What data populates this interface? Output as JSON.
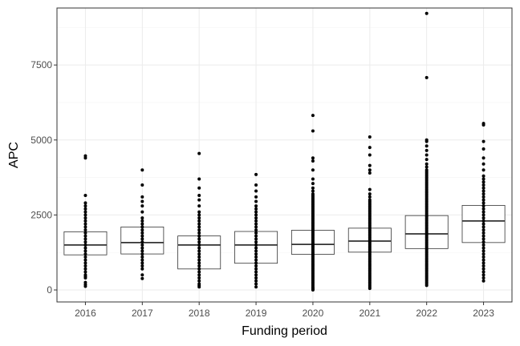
{
  "chart_data": {
    "type": "box",
    "title": "",
    "xlabel": "Funding period",
    "ylabel": "APC",
    "categories": [
      "2016",
      "2017",
      "2018",
      "2019",
      "2020",
      "2021",
      "2022",
      "2023"
    ],
    "ylim": [
      -400,
      9400
    ],
    "yticks": [
      0,
      2500,
      5000,
      7500
    ],
    "ytick_labels": [
      "0",
      "2500",
      "5000",
      "7500"
    ],
    "grid": true,
    "legend": "none",
    "colors": {
      "box_line": "#333333",
      "median": "#333333",
      "point": "#000000",
      "grid_major": "#ebebeb",
      "grid_minor": "#f5f5f5",
      "panel_border": "#333333"
    },
    "boxes": [
      {
        "category": "2016",
        "q1": 1170,
        "median": 1500,
        "q3": 1940
      },
      {
        "category": "2017",
        "q1": 1200,
        "median": 1580,
        "q3": 2100
      },
      {
        "category": "2018",
        "q1": 700,
        "median": 1500,
        "q3": 1800
      },
      {
        "category": "2019",
        "q1": 890,
        "median": 1500,
        "q3": 1950
      },
      {
        "category": "2020",
        "q1": 1190,
        "median": 1520,
        "q3": 1990
      },
      {
        "category": "2021",
        "q1": 1260,
        "median": 1630,
        "q3": 2060
      },
      {
        "category": "2022",
        "q1": 1380,
        "median": 1870,
        "q3": 2480
      },
      {
        "category": "2023",
        "q1": 1580,
        "median": 2300,
        "q3": 2820
      }
    ],
    "points": [
      {
        "category": "2016",
        "values": [
          120,
          180,
          250,
          400,
          450,
          500,
          600,
          700,
          800,
          900,
          1000,
          1100,
          1200,
          1300,
          1400,
          1500,
          1600,
          1700,
          1800,
          1900,
          2000,
          2100,
          2200,
          2300,
          2400,
          2500,
          2600,
          2700,
          2800,
          2900,
          3150,
          4400,
          4470
        ]
      },
      {
        "category": "2017",
        "values": [
          380,
          500,
          700,
          800,
          900,
          1000,
          1100,
          1200,
          1300,
          1400,
          1500,
          1600,
          1700,
          1800,
          1900,
          2000,
          2100,
          2200,
          2300,
          2400,
          2600,
          2800,
          2950,
          3100,
          3500,
          4000
        ]
      },
      {
        "category": "2018",
        "values": [
          100,
          150,
          200,
          300,
          400,
          500,
          600,
          700,
          800,
          900,
          1000,
          1100,
          1200,
          1300,
          1400,
          1500,
          1600,
          1700,
          1800,
          1900,
          2000,
          2100,
          2200,
          2300,
          2400,
          2500,
          2600,
          2800,
          3000,
          3150,
          3400,
          3700,
          4550
        ]
      },
      {
        "category": "2019",
        "values": [
          100,
          200,
          300,
          400,
          500,
          600,
          700,
          800,
          900,
          1000,
          1100,
          1200,
          1300,
          1400,
          1500,
          1600,
          1700,
          1800,
          1900,
          2000,
          2100,
          2200,
          2300,
          2400,
          2500,
          2600,
          2700,
          2800,
          2950,
          3100,
          3300,
          3500,
          3850
        ]
      },
      {
        "category": "2020",
        "values": [
          0,
          30,
          60,
          100,
          150,
          200,
          250,
          300,
          350,
          400,
          450,
          500,
          550,
          600,
          650,
          700,
          750,
          800,
          850,
          900,
          950,
          1000,
          1050,
          1100,
          1150,
          1200,
          1250,
          1300,
          1350,
          1400,
          1450,
          1500,
          1550,
          1600,
          1650,
          1700,
          1750,
          1800,
          1850,
          1900,
          1950,
          2000,
          2050,
          2100,
          2150,
          2200,
          2250,
          2300,
          2350,
          2400,
          2450,
          2500,
          2550,
          2600,
          2650,
          2700,
          2750,
          2800,
          2850,
          2900,
          2950,
          3000,
          3050,
          3100,
          3150,
          3200,
          3300,
          3400,
          3550,
          3700,
          4000,
          4300,
          4400,
          5300,
          5820
        ]
      },
      {
        "category": "2021",
        "values": [
          50,
          100,
          150,
          200,
          250,
          300,
          350,
          400,
          450,
          500,
          550,
          600,
          650,
          700,
          750,
          800,
          850,
          900,
          950,
          1000,
          1050,
          1100,
          1150,
          1200,
          1250,
          1300,
          1350,
          1400,
          1450,
          1500,
          1550,
          1600,
          1650,
          1700,
          1750,
          1800,
          1850,
          1900,
          1950,
          2000,
          2050,
          2100,
          2150,
          2200,
          2250,
          2300,
          2350,
          2400,
          2450,
          2500,
          2550,
          2600,
          2650,
          2700,
          2750,
          2800,
          2850,
          2900,
          2950,
          3000,
          3100,
          3200,
          3350,
          3900,
          4000,
          4150,
          4500,
          4750,
          5100
        ]
      },
      {
        "category": "2022",
        "values": [
          150,
          200,
          250,
          300,
          350,
          400,
          450,
          500,
          550,
          600,
          650,
          700,
          750,
          800,
          850,
          900,
          950,
          1000,
          1050,
          1100,
          1150,
          1200,
          1250,
          1300,
          1350,
          1400,
          1450,
          1500,
          1550,
          1600,
          1650,
          1700,
          1750,
          1800,
          1850,
          1900,
          1950,
          2000,
          2050,
          2100,
          2150,
          2200,
          2250,
          2300,
          2350,
          2400,
          2450,
          2500,
          2550,
          2600,
          2650,
          2700,
          2750,
          2800,
          2850,
          2900,
          2950,
          3000,
          3050,
          3100,
          3150,
          3200,
          3250,
          3300,
          3350,
          3400,
          3450,
          3500,
          3550,
          3600,
          3650,
          3700,
          3750,
          3800,
          3850,
          3900,
          3950,
          4000,
          4100,
          4200,
          4350,
          4500,
          4650,
          4800,
          4950,
          5000,
          7080,
          9220
        ]
      },
      {
        "category": "2023",
        "values": [
          300,
          400,
          500,
          600,
          700,
          800,
          900,
          1000,
          1100,
          1200,
          1300,
          1400,
          1500,
          1600,
          1700,
          1800,
          1900,
          2000,
          2100,
          2200,
          2300,
          2400,
          2500,
          2600,
          2700,
          2800,
          2900,
          3000,
          3100,
          3200,
          3300,
          3400,
          3500,
          3600,
          3700,
          3800,
          4000,
          4200,
          4400,
          4700,
          4950,
          5500,
          5550
        ]
      }
    ]
  }
}
